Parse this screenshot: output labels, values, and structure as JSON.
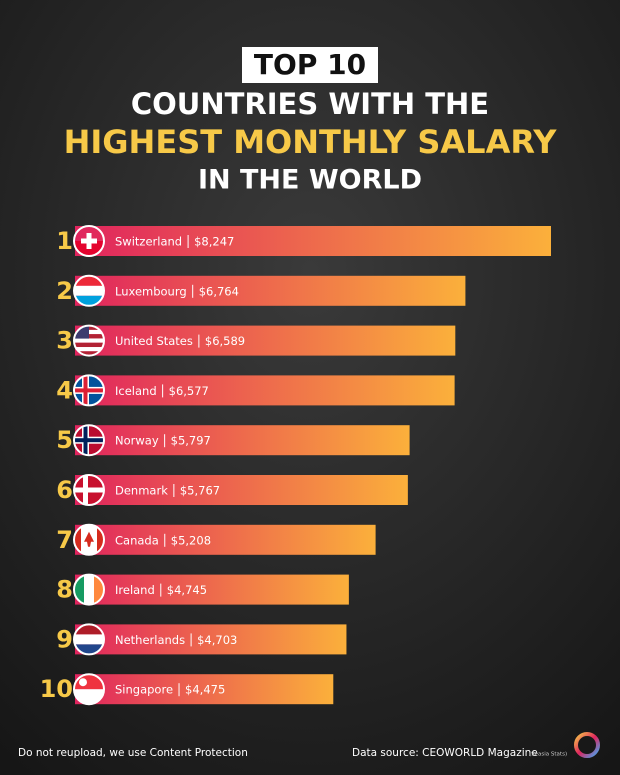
{
  "chart_data": {
    "type": "bar",
    "orientation": "horizontal",
    "badge": "TOP 10",
    "title_lines": [
      "COUNTRIES WITH THE",
      "HIGHEST MONTHLY SALARY",
      "IN THE WORLD"
    ],
    "ranks": [
      1,
      2,
      3,
      4,
      5,
      6,
      7,
      8,
      9,
      10
    ],
    "categories": [
      "Switzerland",
      "Luxembourg",
      "United States",
      "Iceland",
      "Norway",
      "Denmark",
      "Canada",
      "Ireland",
      "Netherlands",
      "Singapore"
    ],
    "values": [
      8247,
      6764,
      6589,
      6577,
      5797,
      5767,
      5208,
      4745,
      4703,
      4475
    ],
    "value_labels": [
      "$8,247",
      "$6,764",
      "$6,589",
      "$6,577",
      "$5,797",
      "$5,767",
      "$5,208",
      "$4,745",
      "$4,703",
      "$4,475"
    ],
    "colors": [
      "#e0245e",
      "#fbb03b"
    ],
    "footer_left": "Do not reupload, we use Content Protection",
    "footer_right": "Data source: CEOWORLD Magazine",
    "footer_note": "(Seasia Stats)"
  }
}
